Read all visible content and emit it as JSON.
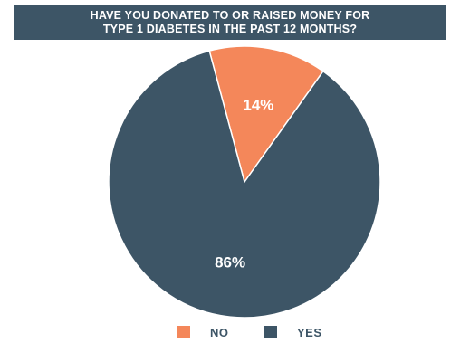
{
  "chart_data": {
    "type": "pie",
    "title_lines": [
      "HAVE YOU DONATED TO OR RAISED MONEY FOR",
      "TYPE 1 DIABETES IN THE PAST 12 MONTHS?"
    ],
    "slices": [
      {
        "name": "NO",
        "value": 14,
        "label": "14%",
        "color": "#f4875a"
      },
      {
        "name": "YES",
        "value": 86,
        "label": "86%",
        "color": "#3d5566"
      }
    ],
    "legend_position": "bottom",
    "title_background": "#3d5566"
  }
}
